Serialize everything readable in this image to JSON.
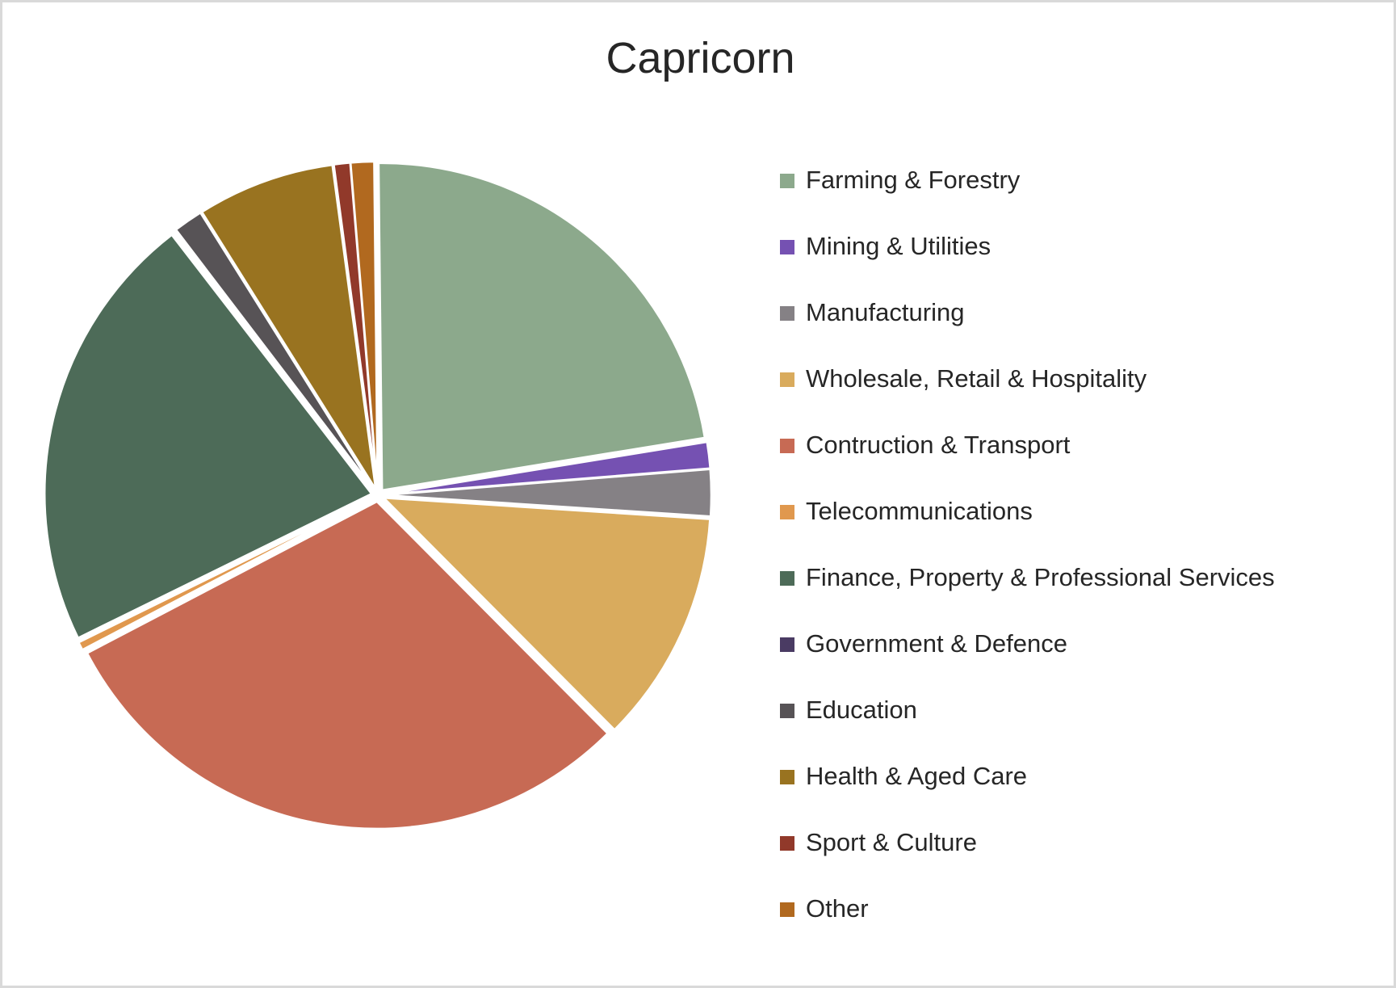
{
  "window": {
    "background_color": "#FFFFFF",
    "border_color": "#D9D9D9"
  },
  "chart": {
    "title": "Capricorn",
    "title_color": "#262626",
    "text_color": "#262626"
  },
  "chart_data": {
    "type": "pie",
    "title": "Capricorn",
    "legend_position": "right",
    "start_angle_deg": -0.6,
    "values_are": "percent_share_estimated",
    "categories": [
      "Farming & Forestry",
      "Mining & Utilities",
      "Manufacturing",
      "Wholesale, Retail & Hospitality",
      "Contruction & Transport",
      "Telecommunications",
      "Finance, Property & Professional Services",
      "Government & Defence",
      "Education",
      "Health & Aged Care",
      "Sport & Culture",
      "Other"
    ],
    "values": [
      22.6,
      1.3,
      2.3,
      11.5,
      29.8,
      0.4,
      21.8,
      0.1,
      1.45,
      6.8,
      0.8,
      1.15
    ],
    "colors": [
      "#8CA98C",
      "#7551B2",
      "#858185",
      "#D9AB5D",
      "#C76A54",
      "#E0984E",
      "#4D6B58",
      "#4A3B63",
      "#575356",
      "#997320",
      "#91392A",
      "#B1691F"
    ]
  }
}
